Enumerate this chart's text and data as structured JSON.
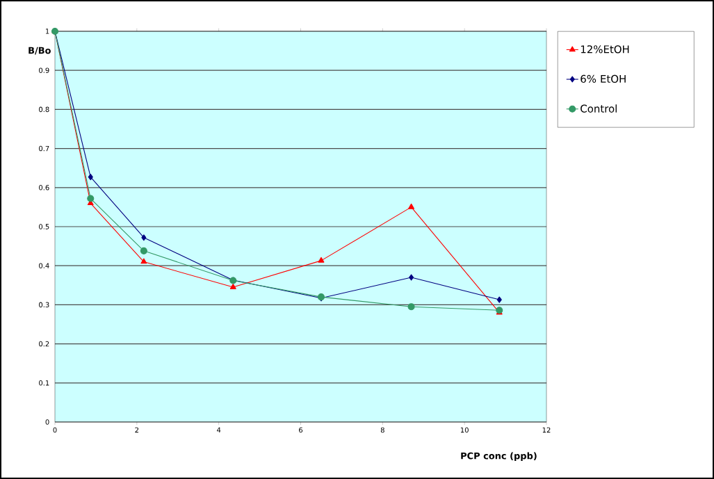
{
  "chart_data": {
    "type": "line",
    "xlabel": "PCP conc (ppb)",
    "ylabel": "B/Bo",
    "x": [
      0,
      0.87,
      2.17,
      4.35,
      6.5,
      8.7,
      10.85
    ],
    "series": [
      {
        "name": "12%EtOH",
        "color": "#ff0000",
        "marker": "triangle",
        "values": [
          1,
          0.56,
          0.41,
          0.345,
          0.413,
          0.55,
          0.28
        ]
      },
      {
        "name": "6% EtOH",
        "color": "#000080",
        "marker": "diamond",
        "values": [
          1,
          0.627,
          0.472,
          0.363,
          0.317,
          0.37,
          0.313
        ]
      },
      {
        "name": "Control",
        "color": "#339966",
        "marker": "circle",
        "values": [
          1,
          0.572,
          0.438,
          0.362,
          0.32,
          0.295,
          0.286
        ]
      }
    ],
    "xlim": [
      0,
      12
    ],
    "xticks": [
      0,
      2,
      4,
      6,
      8,
      10,
      12
    ],
    "ylim": [
      0,
      1
    ],
    "yticks": [
      0,
      0.1,
      0.2,
      0.3,
      0.4,
      0.5,
      0.6,
      0.7,
      0.8,
      0.9,
      1
    ],
    "grid": "y",
    "legend": "right",
    "line_style": "solid"
  }
}
